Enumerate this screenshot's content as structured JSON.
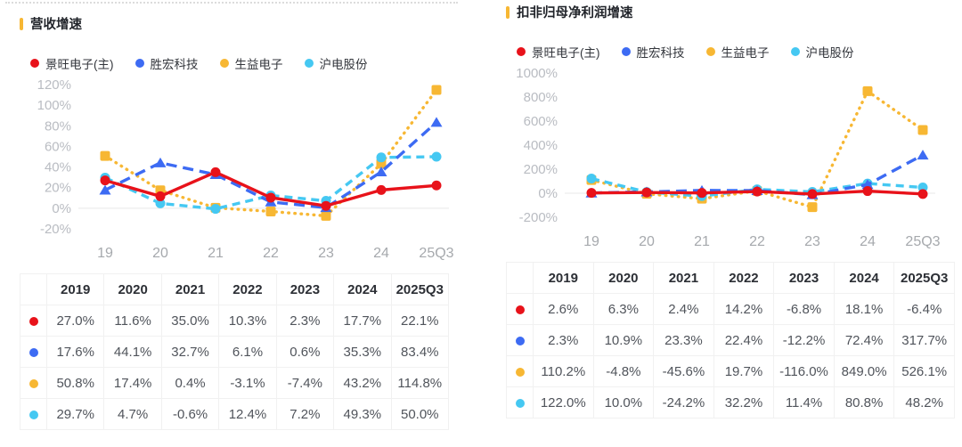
{
  "colors": {
    "accent": "#f7b733",
    "axis_label": "#b9bcc2",
    "x_label": "#a6a9ad",
    "zero_line": "#e8e8e8",
    "red": "#e8121a",
    "blue": "#3d6bf3",
    "yellow": "#f7b733",
    "cyan": "#45c8f2"
  },
  "series_meta": [
    {
      "name": "景旺电子(主)",
      "color": "#e8121a",
      "marker": "circle",
      "line": "solid"
    },
    {
      "name": "胜宏科技",
      "color": "#3d6bf3",
      "marker": "triangle",
      "line": "dashed"
    },
    {
      "name": "生益电子",
      "color": "#f7b733",
      "marker": "square",
      "line": "dotted"
    },
    {
      "name": "沪电股份",
      "color": "#45c8f2",
      "marker": "circle",
      "line": "dashed"
    }
  ],
  "chart_data": [
    {
      "type": "line",
      "title": "营收增速",
      "x": [
        "19",
        "20",
        "21",
        "22",
        "23",
        "24",
        "25Q3"
      ],
      "ylim": [
        -20,
        120
      ],
      "yticks": [
        120,
        100,
        80,
        60,
        40,
        20,
        0,
        -20
      ],
      "ytick_labels": [
        "120%",
        "100%",
        "80%",
        "60%",
        "40%",
        "20%",
        "0%",
        "-20%"
      ],
      "grid": "zero-line-only",
      "legend_position": "top",
      "series": [
        {
          "name": "景旺电子(主)",
          "values": [
            27.0,
            11.6,
            35.0,
            10.3,
            2.3,
            17.7,
            22.1
          ]
        },
        {
          "name": "胜宏科技",
          "values": [
            17.6,
            44.1,
            32.7,
            6.1,
            0.6,
            35.3,
            83.4
          ]
        },
        {
          "name": "生益电子",
          "values": [
            50.8,
            17.4,
            0.4,
            -3.1,
            -7.4,
            43.2,
            114.8
          ]
        },
        {
          "name": "沪电股份",
          "values": [
            29.7,
            4.7,
            -0.6,
            12.4,
            7.2,
            49.3,
            50.0
          ]
        }
      ]
    },
    {
      "type": "line",
      "title": "扣非归母净利润增速",
      "x": [
        "19",
        "20",
        "21",
        "22",
        "23",
        "24",
        "25Q3"
      ],
      "ylim": [
        -200,
        1000
      ],
      "yticks": [
        1000,
        800,
        600,
        400,
        200,
        0,
        -200
      ],
      "ytick_labels": [
        "1000%",
        "800%",
        "600%",
        "400%",
        "200%",
        "0%",
        "-200%"
      ],
      "grid": "zero-line-only",
      "legend_position": "top",
      "series": [
        {
          "name": "景旺电子(主)",
          "values": [
            2.6,
            6.3,
            2.4,
            14.2,
            -6.8,
            18.1,
            -6.4
          ]
        },
        {
          "name": "胜宏科技",
          "values": [
            2.3,
            10.9,
            23.3,
            22.4,
            -12.2,
            72.4,
            317.7
          ]
        },
        {
          "name": "生益电子",
          "values": [
            110.2,
            -4.8,
            -45.6,
            19.7,
            -116.0,
            849.0,
            526.1
          ]
        },
        {
          "name": "沪电股份",
          "values": [
            122.0,
            10.0,
            -24.2,
            32.2,
            11.4,
            80.8,
            48.2
          ]
        }
      ]
    }
  ],
  "panels": [
    {
      "title": "营收增速",
      "table": {
        "headers": [
          "2019",
          "2020",
          "2021",
          "2022",
          "2023",
          "2024",
          "2025Q3"
        ],
        "rows": [
          {
            "series": "景旺电子(主)",
            "cells": [
              "27.0%",
              "11.6%",
              "35.0%",
              "10.3%",
              "2.3%",
              "17.7%",
              "22.1%"
            ]
          },
          {
            "series": "胜宏科技",
            "cells": [
              "17.6%",
              "44.1%",
              "32.7%",
              "6.1%",
              "0.6%",
              "35.3%",
              "83.4%"
            ]
          },
          {
            "series": "生益电子",
            "cells": [
              "50.8%",
              "17.4%",
              "0.4%",
              "-3.1%",
              "-7.4%",
              "43.2%",
              "114.8%"
            ]
          },
          {
            "series": "沪电股份",
            "cells": [
              "29.7%",
              "4.7%",
              "-0.6%",
              "12.4%",
              "7.2%",
              "49.3%",
              "50.0%"
            ]
          }
        ]
      }
    },
    {
      "title": "扣非归母净利润增速",
      "table": {
        "headers": [
          "2019",
          "2020",
          "2021",
          "2022",
          "2023",
          "2024",
          "2025Q3"
        ],
        "rows": [
          {
            "series": "景旺电子(主)",
            "cells": [
              "2.6%",
              "6.3%",
              "2.4%",
              "14.2%",
              "-6.8%",
              "18.1%",
              "-6.4%"
            ]
          },
          {
            "series": "胜宏科技",
            "cells": [
              "2.3%",
              "10.9%",
              "23.3%",
              "22.4%",
              "-12.2%",
              "72.4%",
              "317.7%"
            ]
          },
          {
            "series": "生益电子",
            "cells": [
              "110.2%",
              "-4.8%",
              "-45.6%",
              "19.7%",
              "-116.0%",
              "849.0%",
              "526.1%"
            ]
          },
          {
            "series": "沪电股份",
            "cells": [
              "122.0%",
              "10.0%",
              "-24.2%",
              "32.2%",
              "11.4%",
              "80.8%",
              "48.2%"
            ]
          }
        ]
      }
    }
  ]
}
